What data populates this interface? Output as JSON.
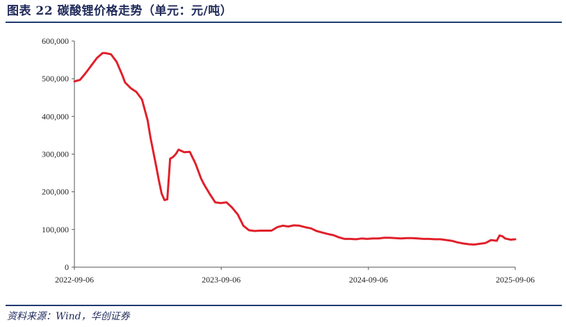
{
  "header": {
    "title": "图表 22   碳酸锂价格走势（单元：元/吨）"
  },
  "footer": {
    "source": "资料来源：Wind，华创证券"
  },
  "chart_data": {
    "type": "line",
    "title": "",
    "xlabel": "",
    "ylabel": "",
    "ylim": [
      0,
      600000
    ],
    "y_ticks": [
      0,
      100000,
      200000,
      300000,
      400000,
      500000,
      600000
    ],
    "y_tick_labels": [
      "0",
      "100,000",
      "200,000",
      "300,000",
      "400,000",
      "500,000",
      "600,000"
    ],
    "x_ticks": [
      "2022-09-06",
      "2023-09-06",
      "2024-09-06",
      "2025-09-06"
    ],
    "xlim": [
      "2022-09-06",
      "2025-09-06"
    ],
    "grid": false,
    "legend": "none",
    "line_color": "#e0202a",
    "series": [
      {
        "x": [
          "2022-09-06",
          "2022-09-20",
          "2022-10-04",
          "2022-10-18",
          "2022-11-01",
          "2022-11-15",
          "2022-11-22",
          "2022-12-06",
          "2022-12-20",
          "2023-01-03",
          "2023-01-10",
          "2023-01-24",
          "2023-02-07",
          "2023-02-21",
          "2023-03-07",
          "2023-03-14",
          "2023-03-28",
          "2023-04-04",
          "2023-04-11",
          "2023-04-18",
          "2023-04-25",
          "2023-05-02",
          "2023-05-09",
          "2023-05-16",
          "2023-05-23",
          "2023-06-06",
          "2023-06-20",
          "2023-07-04",
          "2023-07-18",
          "2023-07-25",
          "2023-08-08",
          "2023-08-22",
          "2023-09-05",
          "2023-09-19",
          "2023-10-03",
          "2023-10-17",
          "2023-10-31",
          "2023-11-14",
          "2023-11-28",
          "2023-12-12",
          "2023-12-26",
          "2024-01-09",
          "2024-01-23",
          "2024-02-06",
          "2024-02-20",
          "2024-03-05",
          "2024-03-19",
          "2024-04-02",
          "2024-04-16",
          "2024-04-30",
          "2024-05-14",
          "2024-05-28",
          "2024-06-11",
          "2024-06-25",
          "2024-07-09",
          "2024-07-23",
          "2024-08-06",
          "2024-08-20",
          "2024-09-03",
          "2024-09-17",
          "2024-10-01",
          "2024-10-15",
          "2024-10-29",
          "2024-11-12",
          "2024-11-26",
          "2024-12-10",
          "2024-12-24",
          "2025-01-07",
          "2025-01-21",
          "2025-02-04",
          "2025-02-18",
          "2025-03-04",
          "2025-03-18",
          "2025-04-01",
          "2025-04-15",
          "2025-04-29",
          "2025-05-13",
          "2025-05-27",
          "2025-06-10",
          "2025-06-24",
          "2025-07-08",
          "2025-07-22",
          "2025-07-29",
          "2025-08-05",
          "2025-08-12",
          "2025-08-26",
          "2025-09-06"
        ],
        "values": [
          493000,
          497000,
          515000,
          535000,
          555000,
          568000,
          568000,
          565000,
          545000,
          510000,
          490000,
          475000,
          465000,
          445000,
          390000,
          345000,
          270000,
          230000,
          195000,
          178000,
          180000,
          288000,
          292000,
          300000,
          312000,
          305000,
          306000,
          275000,
          235000,
          220000,
          195000,
          172000,
          170000,
          172000,
          158000,
          140000,
          110000,
          98000,
          96000,
          97000,
          97000,
          97000,
          106000,
          110000,
          108000,
          111000,
          110000,
          106000,
          103000,
          96000,
          92000,
          88000,
          85000,
          79000,
          75000,
          75000,
          74000,
          76000,
          75000,
          76000,
          76000,
          78000,
          78000,
          77000,
          76000,
          77000,
          77000,
          76000,
          75000,
          75000,
          74000,
          74000,
          72000,
          70000,
          66000,
          63000,
          61000,
          60000,
          62000,
          64000,
          72000,
          70000,
          84000,
          82000,
          76000,
          73000,
          74000
        ]
      }
    ]
  }
}
